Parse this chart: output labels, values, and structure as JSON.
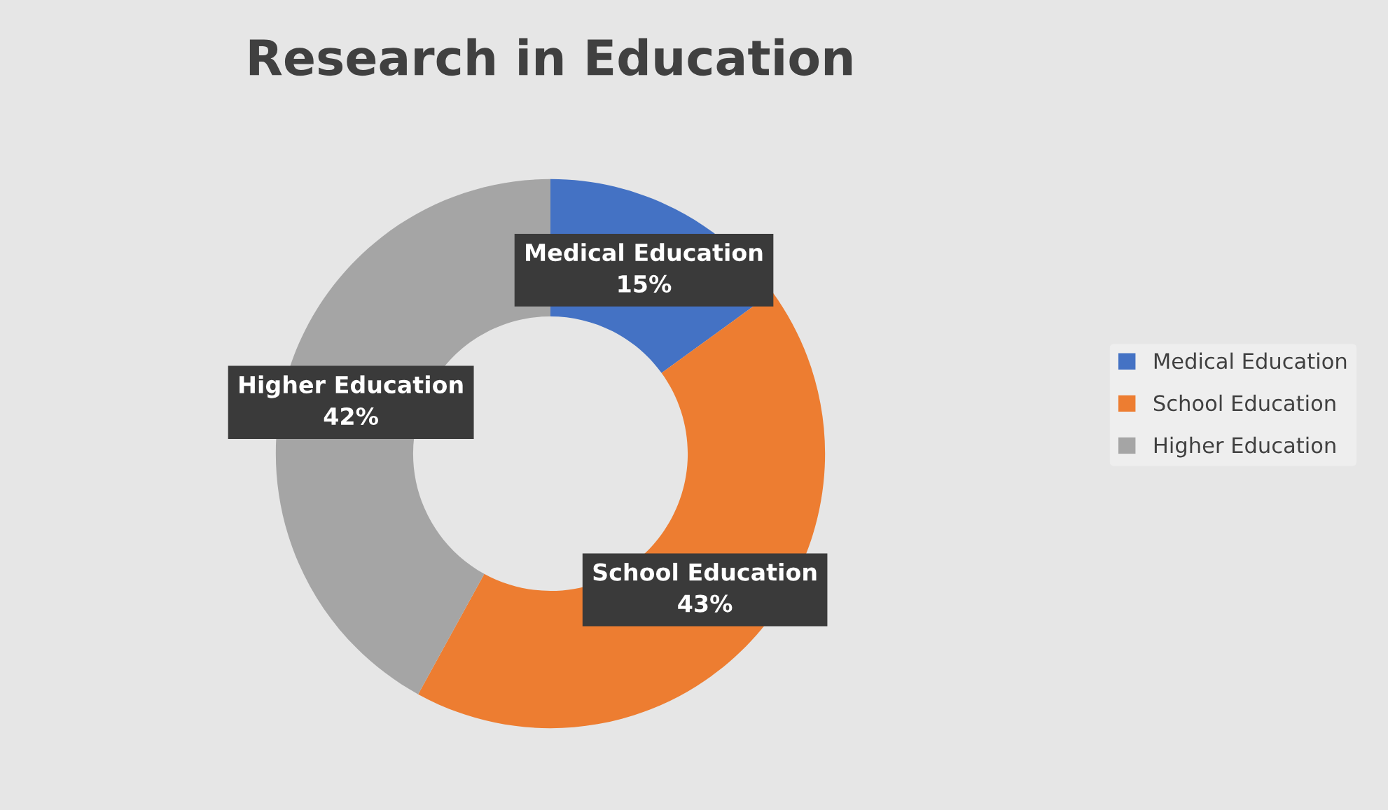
{
  "chart_data": {
    "type": "donut",
    "title": "Research in Education",
    "categories": [
      "Medical Education",
      "School Education",
      "Higher Education"
    ],
    "values": [
      15,
      43,
      42
    ],
    "colors": [
      "#4472c4",
      "#ed7d31",
      "#a5a5a5"
    ],
    "value_labels": [
      "15%",
      "43%",
      "42%"
    ],
    "legend": "right"
  }
}
